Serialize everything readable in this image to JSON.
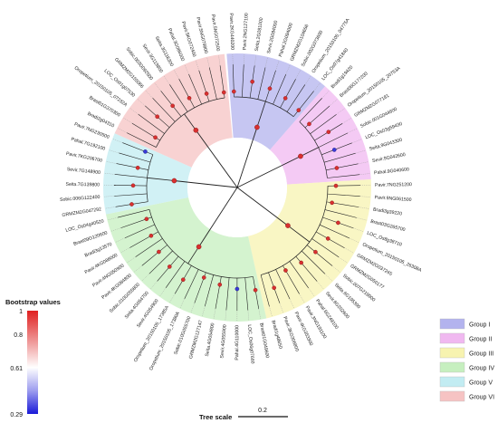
{
  "leaves": [
    "Pavir.2KG440200",
    "Pavir.2NG127100",
    "Seita.2G081000",
    "Sevir.2G084000",
    "Pahal.2G094000",
    "GRMZM2G104656",
    "Sobic.002G073600",
    "Oropetium_20150105_04775A",
    "LOC_Os07g41840",
    "Bradi1g19420",
    "Brast06G177200",
    "Oropetium_20150105_20753A",
    "GRMZM2G077181",
    "Sobic.001G044600",
    "LOC_Os03g59430",
    "Seita.9G043300",
    "Sevir.9G042600",
    "Pahal.9G040600",
    "Pavir.7NG251200",
    "Pavir.9NG061500",
    "Bradi3g39220",
    "Brast03G265700",
    "LOC_Os8g38710",
    "Oropetium_20150105_26308A",
    "GRMZM2G037265",
    "GRMZM2G050177",
    "Sobic.007G219900",
    "Seita.6G195300",
    "Sevir.6G202600",
    "Pahal.6G249100",
    "Pavir.3NG191100",
    "Pavir.4KG353300",
    "Pavir.3KG306800",
    "Bradi1g48650",
    "Brast01G049600",
    "LOC_Os06g07660",
    "Pahal.4G110000",
    "Sevir.4G055900",
    "Seita.4G054800",
    "GRMZM2G127147",
    "Sobic.010G055700",
    "Oropetium_20150105_17380A",
    "Oropetium_20150105_17385A",
    "Sevir.4G054900",
    "Seita.4G054700",
    "Sobic.010G055800",
    "Pavir.4KG084800",
    "Pavir.4NG050900",
    "Pavir.4KG086000",
    "Bradi3g13570",
    "Brast09G120600",
    "LOC_Os04g40520",
    "GRMZM2G047292",
    "Sobic.006G122400",
    "Seita.7G139800",
    "Sevir.7G148900",
    "Pavir.7KG206700",
    "Pahal.7G192100",
    "Pavir.7NG230500",
    "Bradi2g04310",
    "Brast01G370300",
    "Oropetium_20150105_07232A",
    "LOC_Os01g07530",
    "GRMZM2G155066",
    "Sobic.003G092500",
    "Sevir.3G119800",
    "Seita.3G116300",
    "Pahal.3G086000",
    "Pavir.5KG072400",
    "Pavir.5NG079800",
    "Pavir.5NG072500"
  ],
  "groups": [
    {
      "name": "Group I",
      "color": "#b3b3ee"
    },
    {
      "name": "Group II",
      "color": "#f0b8f0"
    },
    {
      "name": "Group III",
      "color": "#f7f3b0"
    },
    {
      "name": "Group IV",
      "color": "#c6efbf"
    },
    {
      "name": "Group V",
      "color": "#c2ecf2"
    },
    {
      "name": "Group VI",
      "color": "#f6c3c3"
    }
  ],
  "legend": {
    "title": "Bootstrap values",
    "ticks": [
      "1",
      "0.8",
      "0.61",
      "0.29"
    ],
    "high_color": "#e02020",
    "low_color": "#1a1ad8"
  },
  "scale": {
    "label": "Tree scale",
    "value": "0.2"
  }
}
